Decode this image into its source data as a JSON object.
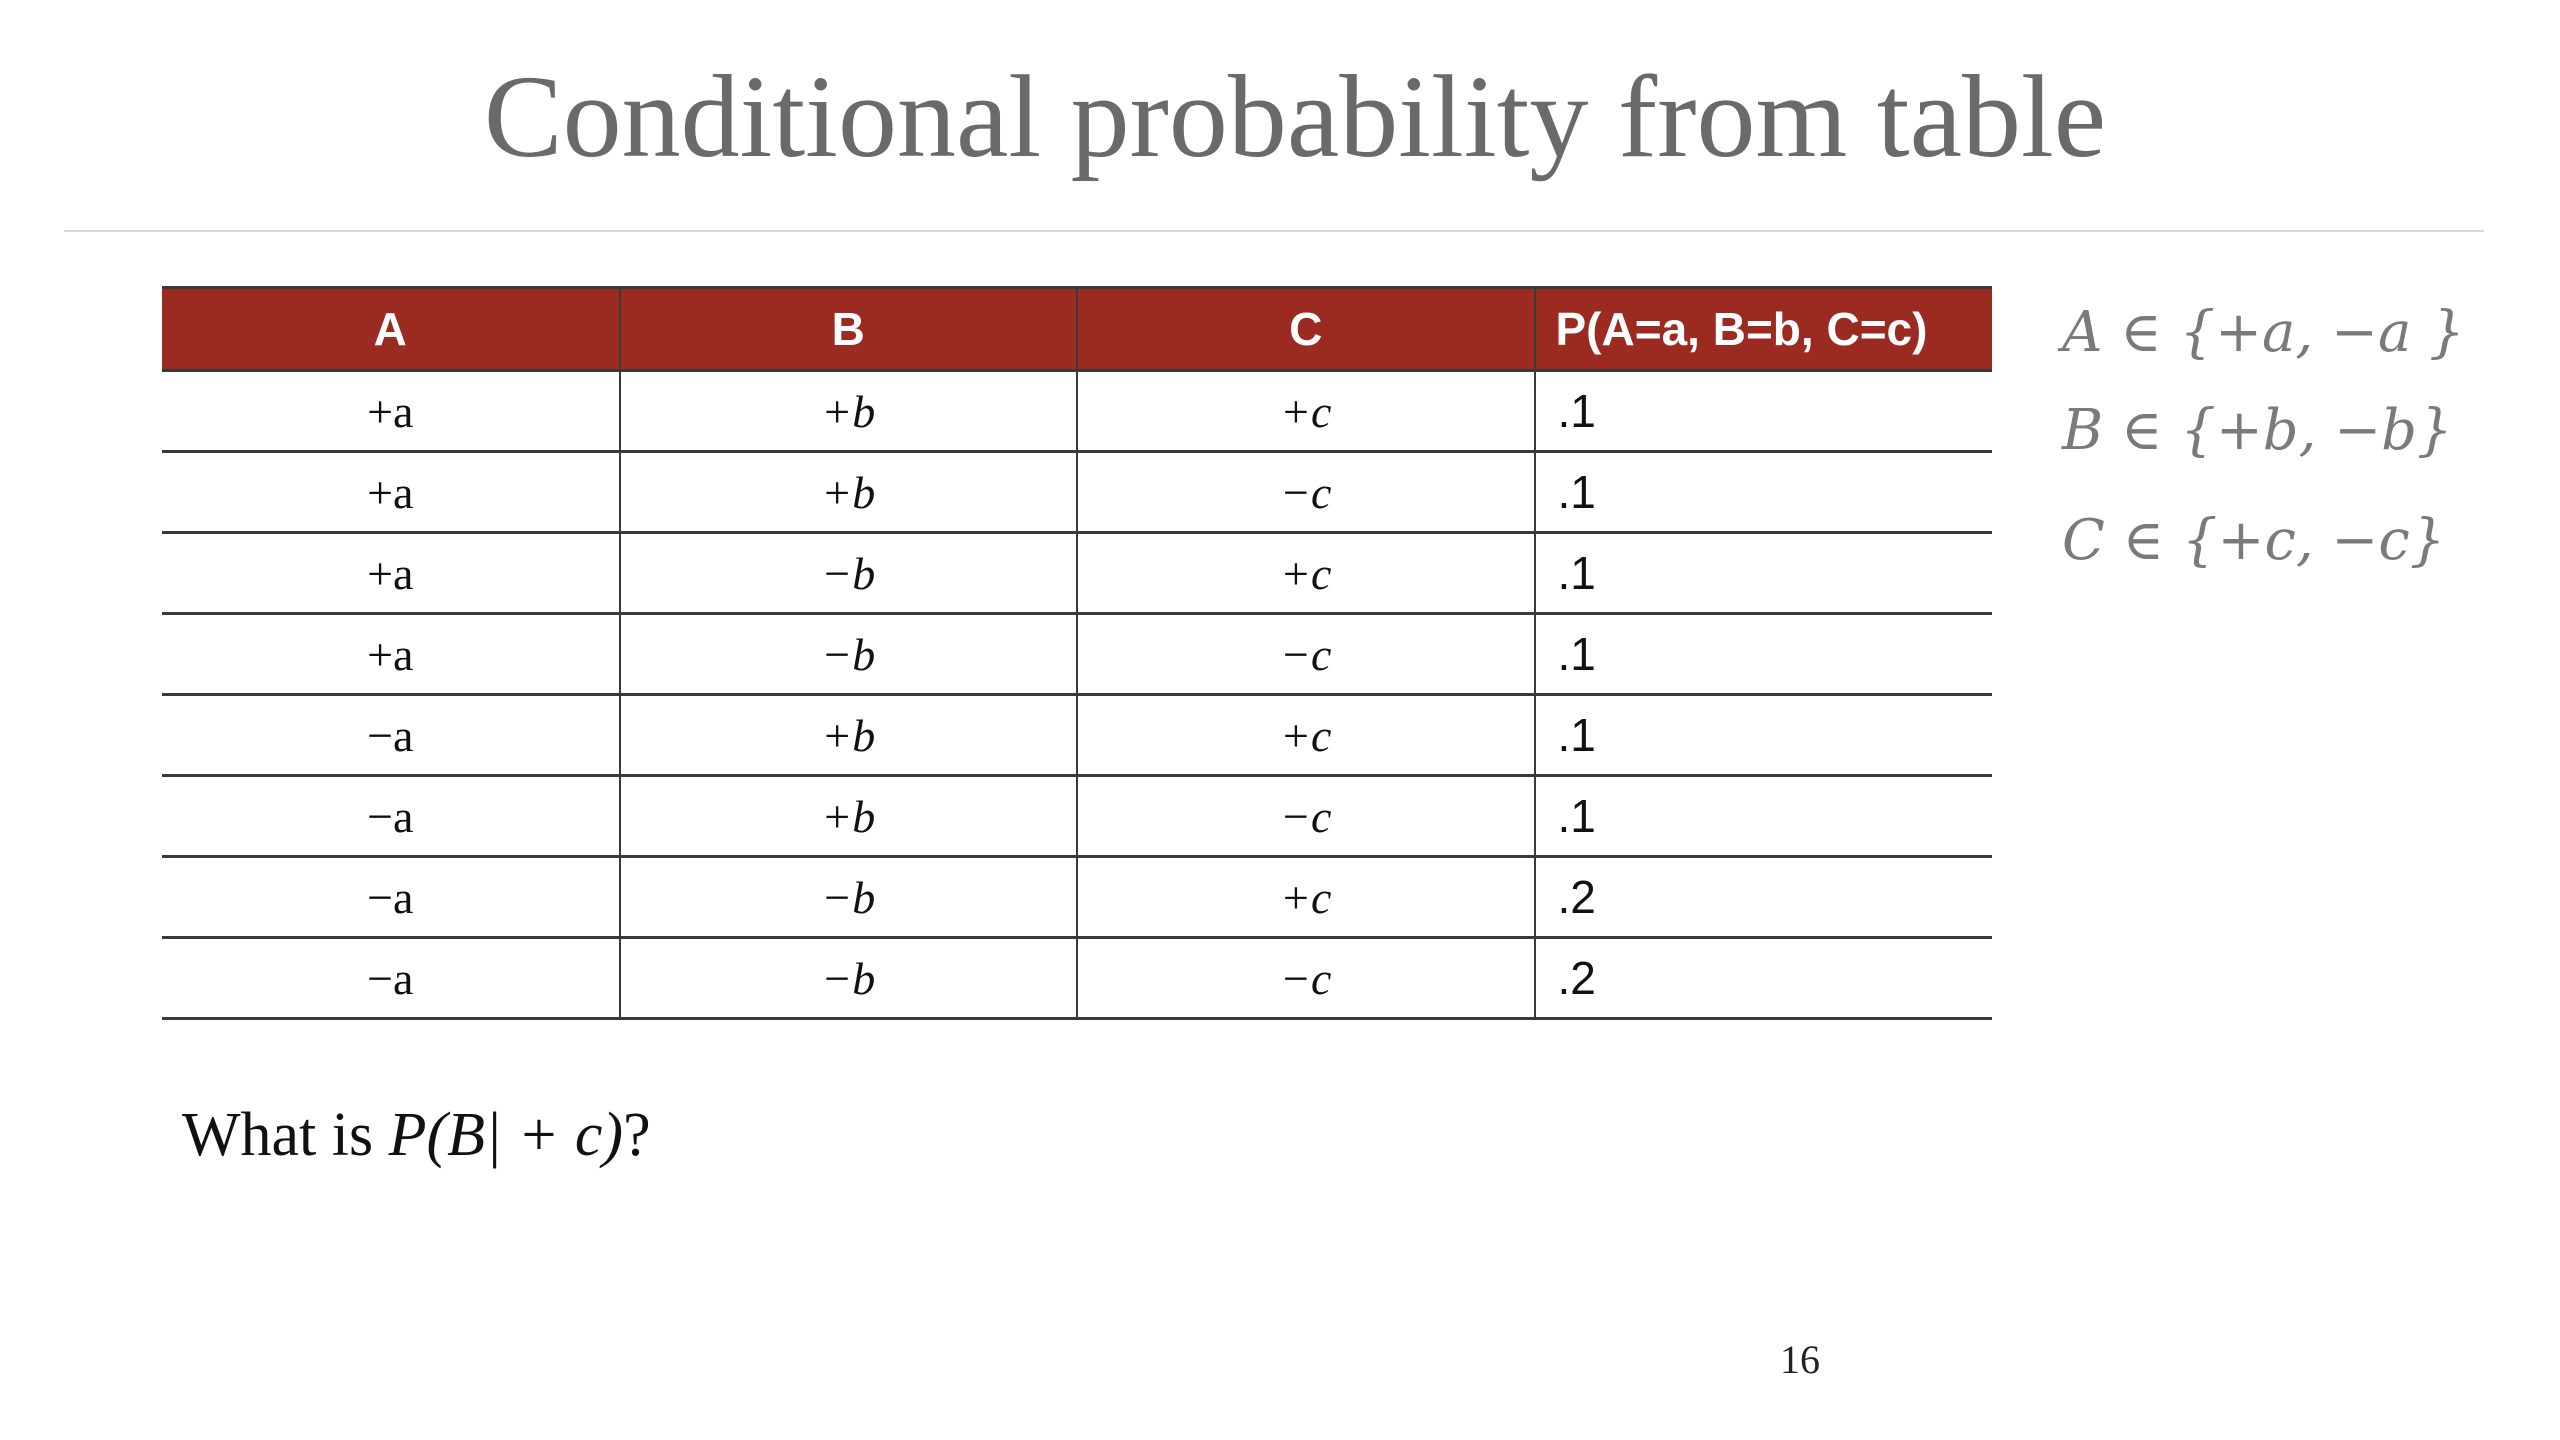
{
  "slide": {
    "title": "Conditional probability from table",
    "table": {
      "headers": [
        "A",
        "B",
        "C",
        "P(A=a, B=b, C=c)"
      ],
      "rows": [
        [
          "+a",
          "+b",
          "+c",
          ".1"
        ],
        [
          "+a",
          "+b",
          "−c",
          ".1"
        ],
        [
          "+a",
          "−b",
          "+c",
          ".1"
        ],
        [
          "+a",
          "−b",
          "−c",
          ".1"
        ],
        [
          "−a",
          "+b",
          "+c",
          ".1"
        ],
        [
          "−a",
          "+b",
          "−c",
          ".1"
        ],
        [
          "−a",
          "−b",
          "+c",
          ".2"
        ],
        [
          "−a",
          "−b",
          "−c",
          ".2"
        ]
      ]
    },
    "domains": [
      "A ∈ {+a, −a }",
      "B ∈ {+b, −b}",
      "C ∈ {+c, −c}"
    ],
    "question": {
      "prefix": "What is ",
      "math": "P(B| + c)",
      "suffix": "?"
    },
    "page_number": "16"
  },
  "colors": {
    "header_background": "#9b2a20",
    "header_text": "#ffffff",
    "title_text": "#6a6a6a",
    "domain_text": "#7a7a7a"
  }
}
